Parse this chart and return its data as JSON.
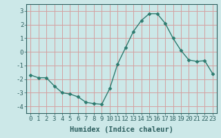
{
  "x": [
    0,
    1,
    2,
    3,
    4,
    5,
    6,
    7,
    8,
    9,
    10,
    11,
    12,
    13,
    14,
    15,
    16,
    17,
    18,
    19,
    20,
    21,
    22,
    23
  ],
  "y": [
    -1.7,
    -1.9,
    -1.9,
    -2.5,
    -3.0,
    -3.1,
    -3.3,
    -3.7,
    -3.8,
    -3.85,
    -2.7,
    -0.9,
    0.3,
    1.5,
    2.3,
    2.8,
    2.8,
    2.1,
    1.0,
    0.1,
    -0.6,
    -0.7,
    -0.65,
    -1.6
  ],
  "line_color": "#2d7b6f",
  "bg_color": "#cce8e8",
  "plot_bg_color": "#cce8e8",
  "grid_color": "#d4a0a0",
  "xlabel": "Humidex (Indice chaleur)",
  "ylim": [
    -4.5,
    3.5
  ],
  "xlim": [
    -0.5,
    23.5
  ],
  "yticks": [
    -4,
    -3,
    -2,
    -1,
    0,
    1,
    2,
    3
  ],
  "xticks": [
    0,
    1,
    2,
    3,
    4,
    5,
    6,
    7,
    8,
    9,
    10,
    11,
    12,
    13,
    14,
    15,
    16,
    17,
    18,
    19,
    20,
    21,
    22,
    23
  ],
  "marker": "D",
  "marker_size": 2.5,
  "line_width": 1.0,
  "xlabel_fontsize": 7.5,
  "tick_fontsize": 6.5,
  "tick_color": "#2d5f5f",
  "label_color": "#2d5f5f"
}
